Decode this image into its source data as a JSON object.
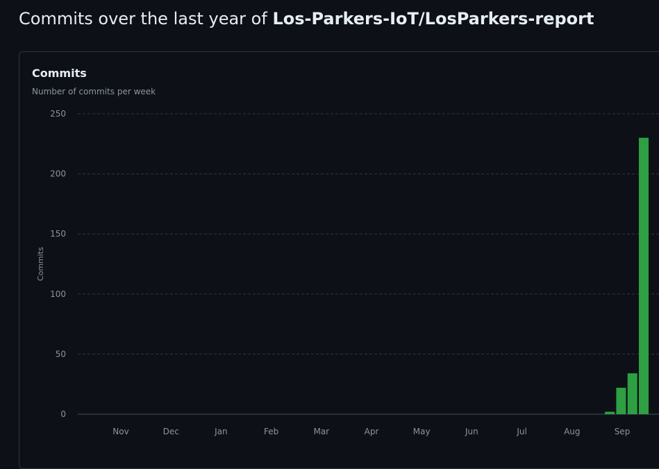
{
  "header": {
    "prefix": "Commits over the last year of",
    "repo": "Los-Parkers-IoT/LosParkers-report"
  },
  "colors": {
    "background": "#0d1117",
    "bar": "#2ea043",
    "grid": "#30363d",
    "muted_text": "#8b949e"
  },
  "chart_data": {
    "type": "bar",
    "title": "Commits",
    "subtitle": "Number of commits per week",
    "xlabel": "",
    "ylabel": "Commits",
    "ylim": [
      0,
      250
    ],
    "yticks": [
      0,
      50,
      100,
      150,
      200,
      250
    ],
    "grid": true,
    "x_tick_labels": [
      "Nov",
      "Dec",
      "Jan",
      "Feb",
      "Mar",
      "Apr",
      "May",
      "Jun",
      "Jul",
      "Aug",
      "Sep"
    ],
    "series": [
      {
        "values": [
          0,
          0,
          0,
          0,
          0,
          0,
          0,
          0,
          0,
          0,
          0,
          0,
          0,
          0,
          0,
          0,
          0,
          0,
          0,
          0,
          0,
          0,
          0,
          0,
          0,
          0,
          0,
          0,
          0,
          0,
          0,
          0,
          0,
          0,
          0,
          0,
          0,
          0,
          0,
          0,
          0,
          0,
          0,
          0,
          0,
          0,
          0,
          0,
          0,
          2,
          22,
          34,
          230
        ]
      }
    ]
  }
}
